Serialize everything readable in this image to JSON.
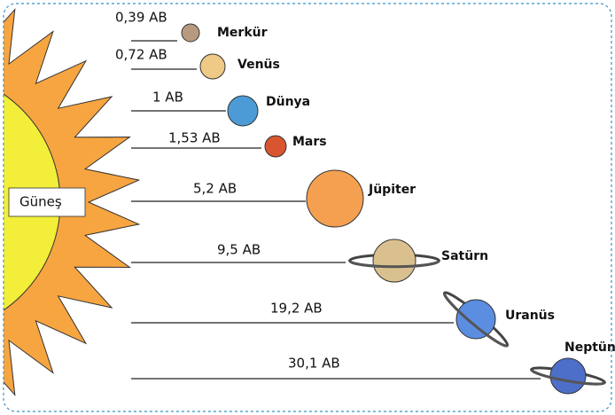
{
  "sun": {
    "label": "Güneş"
  },
  "planets": [
    {
      "name": "Merkür",
      "distance": "0,39 AB"
    },
    {
      "name": "Venüs",
      "distance": "0,72 AB"
    },
    {
      "name": "Dünya",
      "distance": "1 AB"
    },
    {
      "name": "Mars",
      "distance": "1,53 AB"
    },
    {
      "name": "Jüpiter",
      "distance": "5,2 AB"
    },
    {
      "name": "Satürn",
      "distance": "9,5 AB"
    },
    {
      "name": "Uranüs",
      "distance": "19,2 AB"
    },
    {
      "name": "Neptün",
      "distance": "30,1 AB"
    }
  ]
}
